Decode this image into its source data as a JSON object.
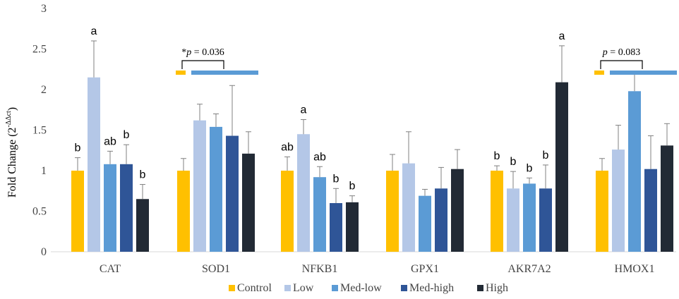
{
  "chart_data": {
    "type": "bar",
    "ylabel_main": "Fold Change (2",
    "ylabel_sup": "-ΔΔct",
    "ylabel_close": ")",
    "ylim": [
      0,
      3
    ],
    "yticks": [
      "0",
      "0.5",
      "1",
      "1.5",
      "2",
      "2.5",
      "3"
    ],
    "categories": [
      "CAT",
      "SOD1",
      "NFKB1",
      "GPX1",
      "AKR7A2",
      "HMOX1"
    ],
    "colors": [
      "#FFC000",
      "#B4C7E7",
      "#5B9BD5",
      "#2F5597",
      "#222A35"
    ],
    "series": [
      {
        "name": "Control",
        "values": [
          1.0,
          1.0,
          1.0,
          1.0,
          1.0,
          1.0
        ],
        "errors": [
          0.16,
          0.15,
          0.17,
          0.2,
          0.06,
          0.15
        ]
      },
      {
        "name": "Low",
        "values": [
          2.15,
          1.62,
          1.45,
          1.09,
          0.78,
          1.26
        ],
        "errors": [
          0.45,
          0.2,
          0.18,
          0.39,
          0.21,
          0.3
        ]
      },
      {
        "name": "Med-low",
        "values": [
          1.08,
          1.54,
          0.92,
          0.69,
          0.84,
          1.98
        ],
        "errors": [
          0.16,
          0.16,
          0.13,
          0.08,
          0.07,
          0.23
        ]
      },
      {
        "name": "Med-high",
        "values": [
          1.08,
          1.43,
          0.6,
          0.78,
          0.78,
          1.02
        ],
        "errors": [
          0.24,
          0.62,
          0.18,
          0.26,
          0.29,
          0.41
        ]
      },
      {
        "name": "High",
        "values": [
          0.65,
          1.21,
          0.61,
          1.02,
          2.09,
          1.31
        ],
        "errors": [
          0.18,
          0.27,
          0.08,
          0.24,
          0.45,
          0.27
        ]
      }
    ],
    "letters": [
      [
        "b",
        "a",
        "ab",
        "b",
        "b"
      ],
      [
        "",
        "",
        "",
        "",
        ""
      ],
      [
        "ab",
        "a",
        "ab",
        "b",
        "b"
      ],
      [
        "",
        "",
        "",
        "",
        ""
      ],
      [
        "b",
        "b",
        "b",
        "b",
        "a"
      ],
      [
        "",
        "",
        "",
        "",
        ""
      ]
    ],
    "annotations": [
      {
        "category": "SOD1",
        "star": "*",
        "p": "p",
        "text": " = 0.036"
      },
      {
        "category": "HMOX1",
        "star": "",
        "p": "p",
        "text": " = 0.083"
      }
    ],
    "legend_position": "bottom"
  }
}
